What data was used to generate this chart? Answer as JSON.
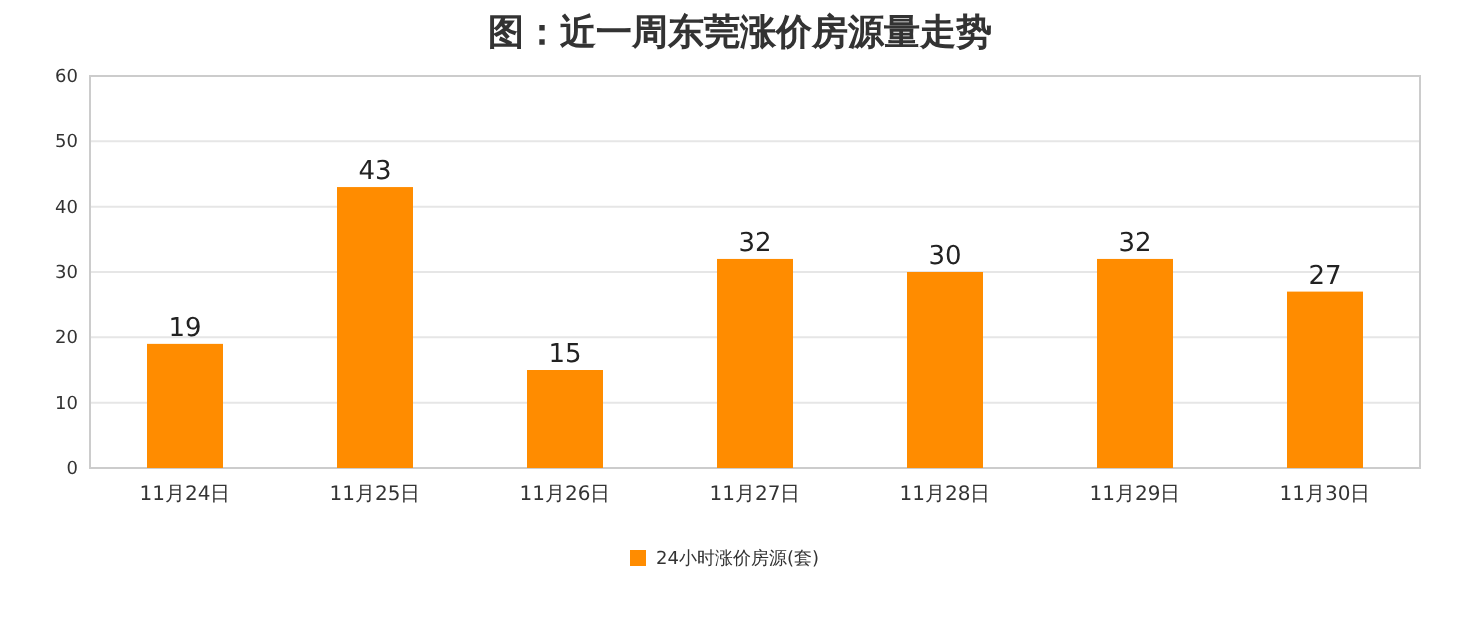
{
  "chart_data": {
    "type": "bar",
    "title": "图：近一周东莞涨价房源量走势",
    "categories": [
      "11月24日",
      "11月25日",
      "11月26日",
      "11月27日",
      "11月28日",
      "11月29日",
      "11月30日"
    ],
    "series": [
      {
        "name": "24小时涨价房源(套)",
        "color": "#ff8c00",
        "values": [
          19,
          43,
          15,
          32,
          30,
          32,
          27
        ]
      }
    ],
    "ylim": [
      0,
      60
    ],
    "yticks": [
      0,
      10,
      20,
      30,
      40,
      50,
      60
    ],
    "grid": "y",
    "legend": "bottom",
    "data_labels": true
  }
}
